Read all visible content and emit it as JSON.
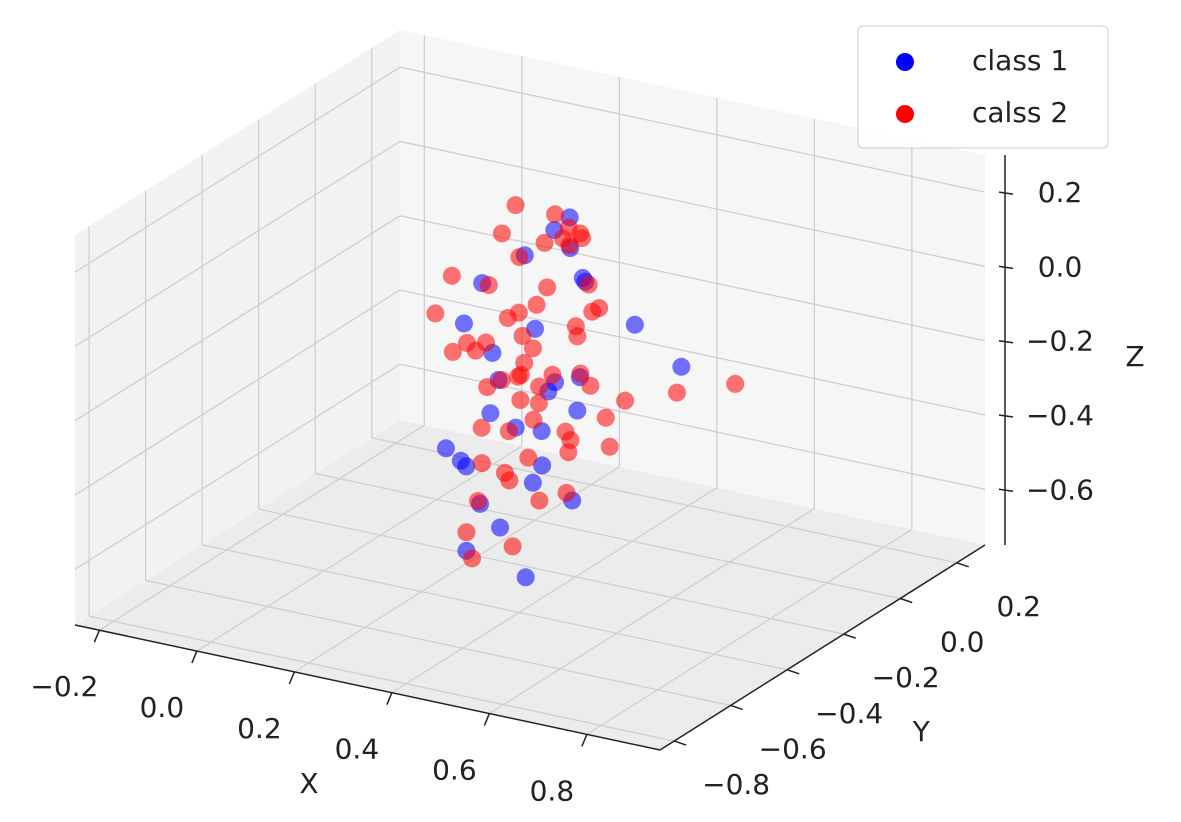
{
  "chart_data": {
    "type": "scatter3d",
    "xlabel": "X",
    "ylabel": "Y",
    "zlabel": "Z",
    "xlim": [
      -0.25,
      0.95
    ],
    "ylim": [
      -0.85,
      0.3
    ],
    "zlim": [
      -0.75,
      0.3
    ],
    "xticks": [
      {
        "value": -0.2,
        "label": "−0.2"
      },
      {
        "value": 0,
        "label": "0.0"
      },
      0.2,
      0.4,
      0.6,
      0.8
    ],
    "yticks": [
      {
        "value": -0.8,
        "label": "−0.8"
      },
      {
        "value": -0.6,
        "label": "−0.6"
      },
      {
        "value": -0.4,
        "label": "−0.4"
      },
      {
        "value": -0.2,
        "label": "−0.2"
      },
      {
        "value": 0,
        "label": "0.0"
      },
      0.2
    ],
    "zticks": [
      {
        "value": -0.6,
        "label": "−0.6"
      },
      {
        "value": -0.4,
        "label": "−0.4"
      },
      {
        "value": -0.2,
        "label": "−0.2"
      },
      {
        "value": 0,
        "label": "0.0"
      },
      0.2
    ],
    "grid": true,
    "legend": "upper right",
    "series": [
      {
        "name": "class 1",
        "color": "#0000ff",
        "x": [
          0.3,
          0.42,
          0.25,
          0.36,
          0.48,
          0.2,
          0.39,
          0.33,
          0.45,
          0.28,
          0.51,
          0.35,
          0.22,
          0.4,
          0.31,
          0.44,
          0.27,
          0.37,
          0.53,
          0.24,
          0.34,
          0.46,
          0.29,
          0.41,
          0.32,
          0.38,
          0.26,
          0.49,
          0.35,
          0.43
        ],
        "y": [
          -0.3,
          -0.2,
          -0.4,
          -0.15,
          -0.35,
          -0.25,
          -0.45,
          -0.1,
          -0.28,
          -0.38,
          -0.18,
          -0.5,
          -0.22,
          -0.32,
          -0.12,
          -0.42,
          -0.27,
          -0.36,
          -0.05,
          -0.33,
          -0.24,
          -0.48,
          -0.19,
          -0.29,
          -0.4,
          -0.14,
          -0.26,
          -0.34,
          -0.21,
          -0.37
        ],
        "z": [
          -0.2,
          0.05,
          -0.35,
          0.1,
          -0.45,
          -0.1,
          -0.5,
          0.15,
          -0.25,
          -0.4,
          -0.05,
          -0.55,
          0.0,
          -0.3,
          0.12,
          -0.38,
          -0.15,
          -0.28,
          -0.22,
          -0.42,
          -0.08,
          -0.6,
          0.08,
          -0.18,
          -0.48,
          0.02,
          -0.32,
          -0.12,
          -0.26,
          -0.36
        ]
      },
      {
        "name": "calss 2",
        "color": "#ff0000",
        "x": [
          0.32,
          0.28,
          0.41,
          0.35,
          0.22,
          0.45,
          0.38,
          0.3,
          0.26,
          0.5,
          0.33,
          0.4,
          0.19,
          0.36,
          0.43,
          0.29,
          0.37,
          0.31,
          0.47,
          0.24,
          0.34,
          0.39,
          0.27,
          0.42,
          0.55,
          0.21,
          0.35,
          0.44,
          0.3,
          0.38,
          0.33,
          0.48,
          0.25,
          0.36,
          0.41,
          0.29,
          0.52,
          0.34,
          0.39,
          0.23,
          0.46,
          0.31,
          0.37,
          0.28,
          0.43,
          0.35,
          0.6,
          0.32,
          0.4,
          0.26,
          0.45,
          0.36,
          0.3,
          0.38,
          0.34,
          0.42,
          0.27,
          0.49,
          0.33,
          0.37
        ],
        "y": [
          -0.25,
          -0.3,
          -0.2,
          -0.35,
          -0.15,
          -0.28,
          -0.4,
          -0.1,
          -0.22,
          -0.32,
          -0.18,
          -0.45,
          -0.05,
          -0.26,
          -0.38,
          -0.12,
          -0.33,
          -0.24,
          -0.2,
          -0.42,
          -0.29,
          -0.16,
          -0.36,
          -0.27,
          -0.1,
          -0.31,
          -0.5,
          -0.21,
          -0.34,
          -0.19,
          -0.23,
          -0.37,
          -0.14,
          -0.28,
          -0.44,
          -0.25,
          -0.3,
          -0.08,
          -0.35,
          -0.26,
          -0.22,
          -0.39,
          -0.17,
          -0.31,
          -0.27,
          -0.48,
          0.02,
          -0.2,
          -0.33,
          -0.29,
          -0.24,
          -0.13,
          -0.36,
          -0.21,
          -0.3,
          -0.26,
          -0.41,
          -0.18,
          -0.28,
          -0.23
        ],
        "z": [
          -0.1,
          0.05,
          -0.2,
          -0.3,
          0.1,
          -0.05,
          -0.4,
          0.15,
          -0.25,
          -0.15,
          0.0,
          -0.35,
          0.12,
          -0.22,
          -0.45,
          0.08,
          -0.12,
          -0.28,
          -0.38,
          0.02,
          -0.18,
          0.14,
          -0.08,
          -0.32,
          -0.26,
          0.06,
          -0.5,
          -0.02,
          -0.2,
          0.18,
          -0.14,
          -0.42,
          0.04,
          -0.3,
          -0.55,
          -0.06,
          -0.24,
          0.1,
          -0.36,
          -0.16,
          0.0,
          -0.48,
          0.12,
          -0.1,
          -0.34,
          -0.58,
          -0.28,
          -0.04,
          -0.22,
          -0.44,
          0.07,
          -0.12,
          -0.3,
          0.16,
          -0.18,
          -0.38,
          -0.08,
          -0.26,
          -0.02,
          -0.2
        ]
      }
    ]
  }
}
